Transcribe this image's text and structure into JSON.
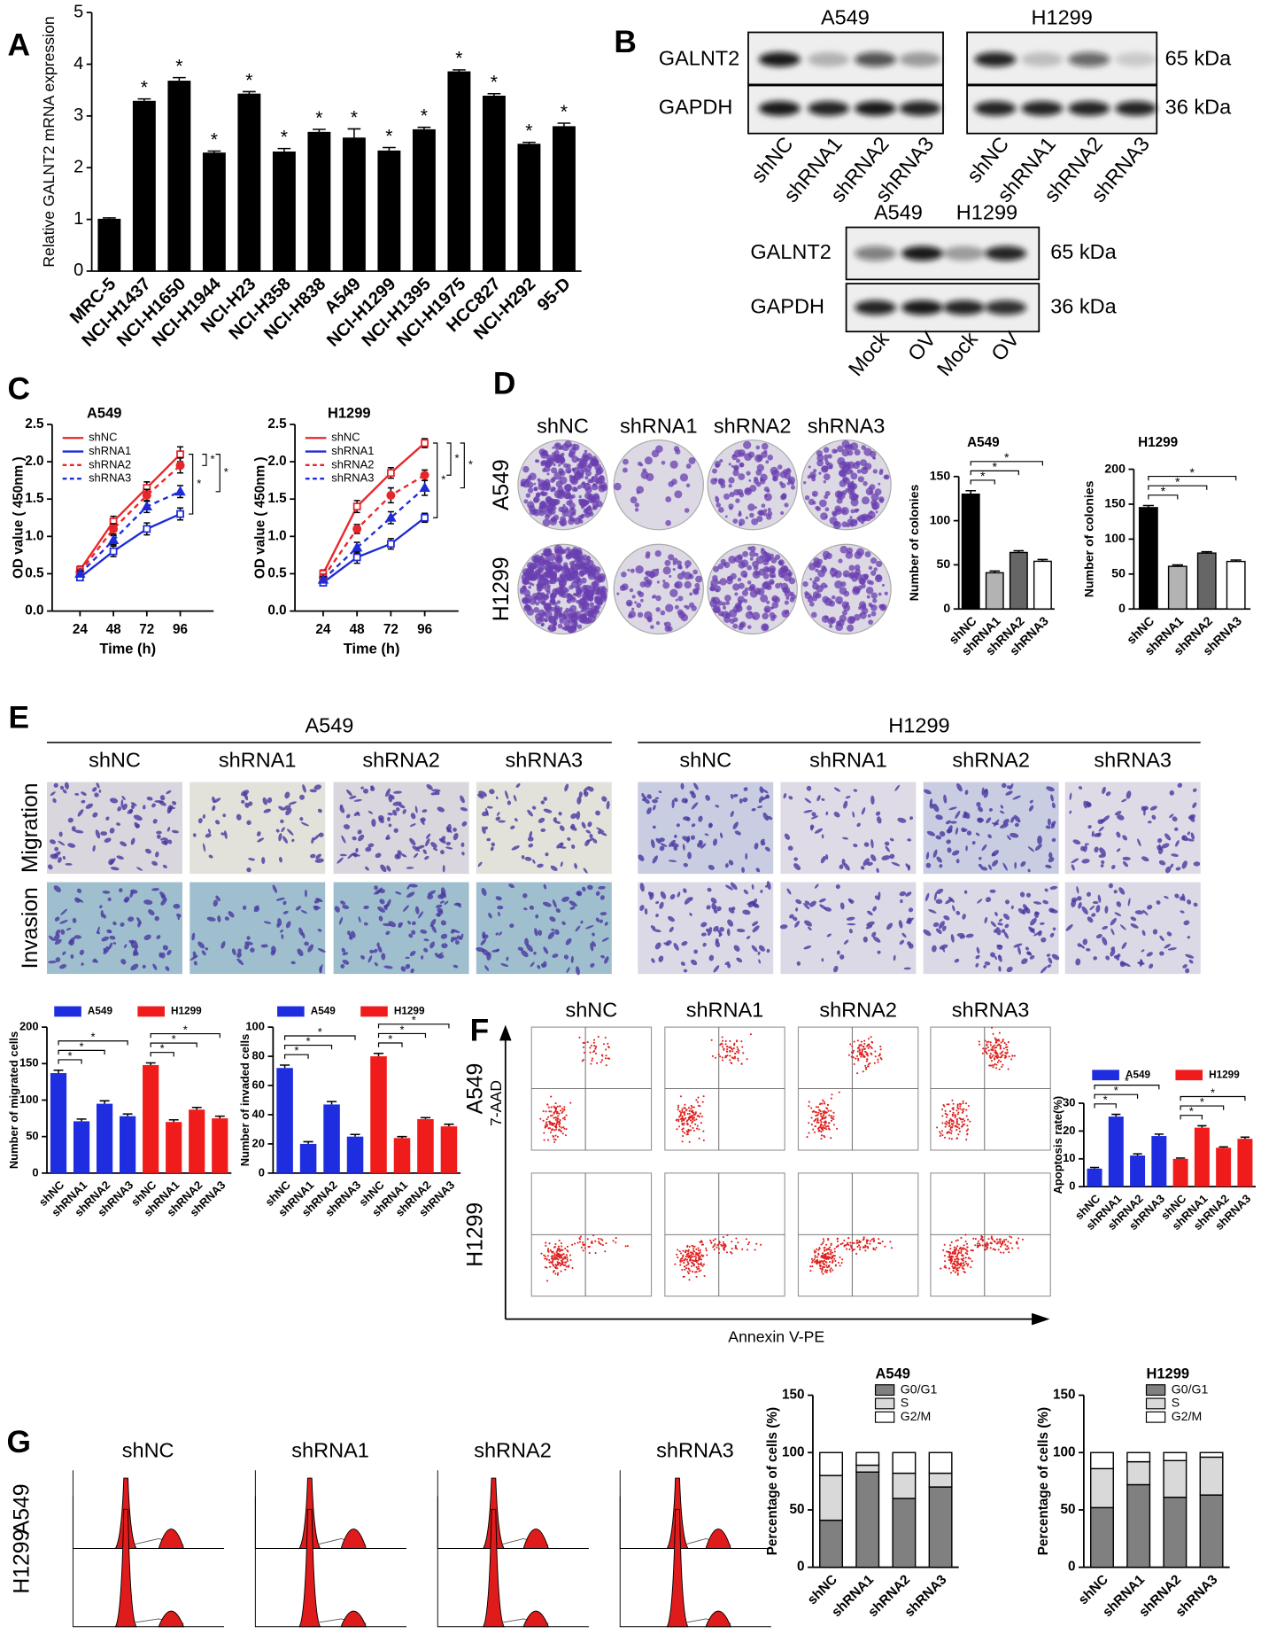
{
  "panel_letters": [
    "A",
    "B",
    "C",
    "D",
    "E",
    "F",
    "G"
  ],
  "chart_data": [
    {
      "type": "bar",
      "categories": [
        "MRC-5",
        "NCI-H1437",
        "NCI-H1650",
        "NCI-H1944",
        "NCI-H23",
        "NCI-H358",
        "NCI-H838",
        "A549",
        "NCI-H1299",
        "NCI-H1395",
        "NCI-H1975",
        "HCC827",
        "NCI-H292",
        "95-D"
      ],
      "values": [
        1.0,
        3.28,
        3.67,
        2.28,
        3.42,
        2.3,
        2.68,
        2.57,
        2.32,
        2.73,
        3.85,
        3.38,
        2.45,
        2.79
      ],
      "errors": [
        0.03,
        0.05,
        0.07,
        0.04,
        0.05,
        0.07,
        0.06,
        0.18,
        0.07,
        0.05,
        0.04,
        0.05,
        0.04,
        0.07
      ],
      "annotations": [
        null,
        "*",
        "*",
        "*",
        "*",
        "*",
        "*",
        "*",
        "*",
        "*",
        "*",
        "*",
        "*",
        "*"
      ],
      "color": "#000000",
      "y_label": "Relative GALNT2 mRNA expression",
      "ylim": [
        0,
        5
      ],
      "yticks": [
        0,
        1,
        2,
        3,
        4,
        5
      ]
    },
    {
      "type": "line",
      "title": "A549",
      "x": [
        24,
        48,
        72,
        96
      ],
      "xlim": [
        4,
        120
      ],
      "xticks": [
        24,
        48,
        72,
        96
      ],
      "x_label": "Time (h)",
      "y_label": "OD value ( 450nm )",
      "ylim": [
        0,
        2.5
      ],
      "yticks": [
        {
          "value": 0,
          "label": "0.0"
        },
        0.5,
        {
          "value": 1,
          "label": "1.0"
        },
        1.5,
        {
          "value": 2,
          "label": "2.0"
        },
        2.5
      ],
      "series": [
        {
          "name": "shNC",
          "color": "#e8262a",
          "dash": false,
          "marker": "square",
          "values": [
            0.55,
            1.2,
            1.65,
            2.1
          ],
          "errors": [
            0.05,
            0.07,
            0.08,
            0.1
          ]
        },
        {
          "name": "shRNA1",
          "color": "#1f2bd6",
          "dash": false,
          "marker": "square",
          "values": [
            0.45,
            0.8,
            1.1,
            1.3
          ],
          "errors": [
            0.04,
            0.07,
            0.08,
            0.08
          ]
        },
        {
          "name": "shRNA2",
          "color": "#e8262a",
          "dash": true,
          "marker": "circle",
          "values": [
            0.52,
            1.1,
            1.55,
            1.95
          ],
          "errors": [
            0.04,
            0.07,
            0.08,
            0.1
          ]
        },
        {
          "name": "shRNA3",
          "color": "#1f2bd6",
          "dash": true,
          "marker": "triangle",
          "values": [
            0.5,
            0.95,
            1.4,
            1.6
          ],
          "errors": [
            0.04,
            0.06,
            0.08,
            0.08
          ]
        }
      ],
      "significance": [
        "*",
        "*",
        "*"
      ]
    },
    {
      "type": "line",
      "title": "H1299",
      "x": [
        24,
        48,
        72,
        96
      ],
      "xlim": [
        4,
        120
      ],
      "xticks": [
        24,
        48,
        72,
        96
      ],
      "x_label": "Time (h)",
      "y_label": "OD value ( 450nm )",
      "ylim": [
        0,
        2.5
      ],
      "yticks": [
        {
          "value": 0,
          "label": "0.0"
        },
        0.5,
        {
          "value": 1,
          "label": "1.0"
        },
        1.5,
        {
          "value": 2,
          "label": "2.0"
        },
        2.5
      ],
      "series": [
        {
          "name": "shNC",
          "color": "#e8262a",
          "dash": false,
          "marker": "square",
          "values": [
            0.5,
            1.4,
            1.85,
            2.25
          ],
          "errors": [
            0.05,
            0.08,
            0.07,
            0.06
          ]
        },
        {
          "name": "shRNA1",
          "color": "#1f2bd6",
          "dash": false,
          "marker": "square",
          "values": [
            0.38,
            0.72,
            0.9,
            1.25
          ],
          "errors": [
            0.04,
            0.08,
            0.07,
            0.06
          ]
        },
        {
          "name": "shRNA2",
          "color": "#e8262a",
          "dash": true,
          "marker": "circle",
          "values": [
            0.45,
            1.1,
            1.55,
            1.82
          ],
          "errors": [
            0.04,
            0.06,
            0.1,
            0.07
          ]
        },
        {
          "name": "shRNA3",
          "color": "#1f2bd6",
          "dash": true,
          "marker": "triangle",
          "values": [
            0.42,
            0.85,
            1.25,
            1.65
          ],
          "errors": [
            0.04,
            0.07,
            0.08,
            0.1
          ]
        }
      ],
      "significance": [
        "*",
        "*",
        "*"
      ]
    },
    {
      "type": "bar",
      "title": "A549",
      "categories": [
        "shNC",
        "shRNA1",
        "shRNA2",
        "shRNA3"
      ],
      "values": [
        130,
        41,
        64,
        54
      ],
      "errors": [
        4,
        2,
        2,
        2
      ],
      "colors": [
        "#000000",
        "#b3b3b3",
        "#666666",
        "#ffffff"
      ],
      "y_label": "Number of colonies",
      "ylim": [
        0,
        150
      ],
      "yticks": [
        0,
        50,
        100,
        150
      ],
      "significance": [
        "*",
        "*",
        "*"
      ]
    },
    {
      "type": "bar",
      "title": "H1299",
      "categories": [
        "shNC",
        "shRNA1",
        "shRNA2",
        "shRNA3"
      ],
      "values": [
        145,
        61,
        80,
        68
      ],
      "errors": [
        3,
        2,
        2,
        2
      ],
      "colors": [
        "#000000",
        "#b3b3b3",
        "#666666",
        "#ffffff"
      ],
      "y_label": "Number of colonies",
      "ylim": [
        0,
        200
      ],
      "yticks": [
        0,
        50,
        100,
        150,
        200
      ],
      "significance": [
        "*",
        "*",
        "*"
      ]
    },
    {
      "type": "grouped_bar",
      "categories": [
        "shNC",
        "shRNA1",
        "shRNA2",
        "shRNA3"
      ],
      "y_label": "Number of migrated cells",
      "ylim": [
        0,
        200
      ],
      "yticks": [
        0,
        50,
        100,
        150,
        200
      ],
      "series": [
        {
          "name": "A549",
          "color": "#1f2de0",
          "values": [
            137,
            71,
            95,
            78
          ],
          "errors": [
            4,
            3,
            4,
            3
          ],
          "significance": [
            "*",
            "*",
            "*"
          ]
        },
        {
          "name": "H1299",
          "color": "#f01c1c",
          "values": [
            148,
            70,
            87,
            75
          ],
          "errors": [
            3,
            3,
            3,
            3
          ],
          "significance": [
            "*",
            "*",
            "*"
          ]
        }
      ]
    },
    {
      "type": "grouped_bar",
      "categories": [
        "shNC",
        "shRNA1",
        "shRNA2",
        "shRNA3"
      ],
      "y_label": "Number of invaded cells",
      "ylim": [
        0,
        100
      ],
      "yticks": [
        0,
        20,
        40,
        60,
        80,
        100
      ],
      "series": [
        {
          "name": "A549",
          "color": "#1f2de0",
          "values": [
            72,
            20,
            47,
            25
          ],
          "errors": [
            2,
            1.5,
            2,
            1.5
          ],
          "significance": [
            "*",
            "*",
            "*"
          ]
        },
        {
          "name": "H1299",
          "color": "#f01c1c",
          "values": [
            80,
            24,
            37,
            32
          ],
          "errors": [
            2,
            1,
            1,
            1.5
          ],
          "significance": [
            "*",
            "*",
            "*"
          ]
        }
      ]
    },
    {
      "type": "grouped_bar",
      "categories": [
        "shNC",
        "shRNA1",
        "shRNA2",
        "shRNA3"
      ],
      "y_label": "Apoptosis rate(%)",
      "ylim": [
        0,
        30
      ],
      "yticks": [
        0,
        10,
        20,
        30
      ],
      "series": [
        {
          "name": "A549",
          "color": "#1f2de0",
          "values": [
            6.5,
            25.2,
            11.2,
            18.2
          ],
          "errors": [
            0.4,
            0.8,
            0.6,
            0.7
          ],
          "significance": [
            "*",
            "*",
            "*"
          ]
        },
        {
          "name": "H1299",
          "color": "#f01c1c",
          "values": [
            10,
            21.2,
            14,
            17.2
          ],
          "errors": [
            0.3,
            0.7,
            0.3,
            0.6
          ],
          "significance": [
            "*",
            "*",
            "*"
          ]
        }
      ]
    },
    {
      "type": "stacked_bar",
      "title": "A549",
      "categories": [
        "shNC",
        "shRNA1",
        "shRNA2",
        "shRNA3"
      ],
      "y_label": "Percentage of cells (%)",
      "ylim": [
        0,
        150
      ],
      "yticks": [
        0,
        50,
        100,
        150
      ],
      "series": [
        {
          "name": "G0/G1",
          "color": "#808080",
          "values": [
            41,
            83,
            60,
            70
          ]
        },
        {
          "name": "S",
          "color": "#d9d9d9",
          "values": [
            39,
            6,
            22,
            12
          ]
        },
        {
          "name": "G2/M",
          "color": "#ffffff",
          "values": [
            20,
            11,
            18,
            18
          ]
        }
      ]
    },
    {
      "type": "stacked_bar",
      "title": "H1299",
      "categories": [
        "shNC",
        "shRNA1",
        "shRNA2",
        "shRNA3"
      ],
      "y_label": "Percentage of cells (%)",
      "ylim": [
        0,
        150
      ],
      "yticks": [
        0,
        50,
        100,
        150
      ],
      "series": [
        {
          "name": "G0/G1",
          "color": "#808080",
          "values": [
            52,
            72,
            61,
            63
          ]
        },
        {
          "name": "S",
          "color": "#d9d9d9",
          "values": [
            34,
            20,
            32,
            33
          ]
        },
        {
          "name": "G2/M",
          "color": "#ffffff",
          "values": [
            14,
            8,
            7,
            4
          ]
        }
      ]
    }
  ],
  "blots": [
    {
      "cells": [
        {
          "name": "A549",
          "lanes": [
            "shNC",
            "shRNA1",
            "shRNA2",
            "shRNA3"
          ]
        },
        {
          "name": "H1299",
          "lanes": [
            "shNC",
            "shRNA1",
            "shRNA2",
            "shRNA3"
          ]
        }
      ],
      "proteins": [
        "GALNT2",
        "GAPDH"
      ],
      "sizes": [
        "65 kDa",
        "36 kDa"
      ]
    },
    {
      "cells": [
        {
          "name": "A549",
          "lanes": [
            "Mock",
            "OV"
          ]
        },
        {
          "name": "H1299",
          "lanes": [
            "Mock",
            "OV"
          ]
        }
      ],
      "proteins": [
        "GALNT2",
        "GAPDH"
      ],
      "sizes": [
        "65 kDa",
        "36 kDa"
      ]
    }
  ],
  "colony": {
    "columns": [
      "shNC",
      "shRNA1",
      "shRNA2",
      "shRNA3"
    ],
    "rows": [
      "A549",
      "H1299"
    ]
  },
  "transwell": {
    "groups": [
      {
        "name": "A549",
        "columns": [
          "shNC",
          "shRNA1",
          "shRNA2",
          "shRNA3"
        ]
      },
      {
        "name": "H1299",
        "columns": [
          "shNC",
          "shRNA1",
          "shRNA2",
          "shRNA3"
        ]
      }
    ],
    "rows": [
      "Migration",
      "Invasion"
    ]
  },
  "flow": {
    "columns": [
      "shNC",
      "shRNA1",
      "shRNA2",
      "shRNA3"
    ],
    "rows": [
      "A549",
      "H1299"
    ],
    "y_label": "7-AAD",
    "x_label": "Annexin V-PE"
  },
  "cell_cycle": {
    "columns": [
      "shNC",
      "shRNA1",
      "shRNA2",
      "shRNA3"
    ],
    "rows": [
      "A549",
      "H1299"
    ]
  }
}
